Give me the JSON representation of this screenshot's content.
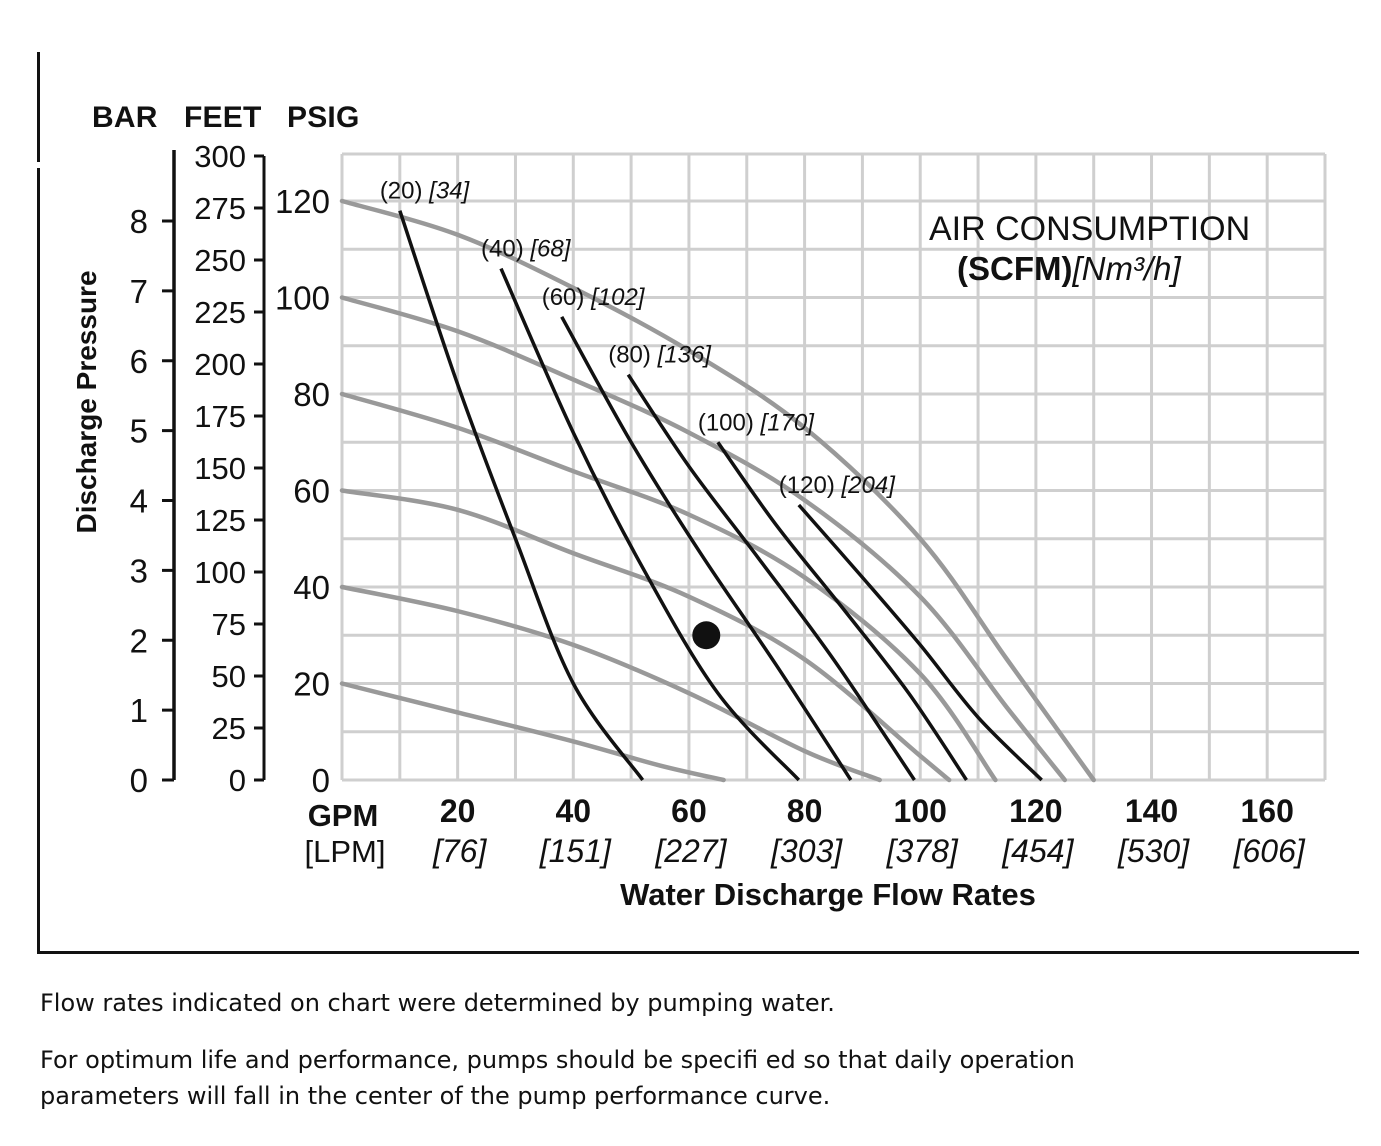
{
  "chart_data": {
    "type": "line",
    "unit_headers": [
      "BAR",
      "FEET",
      "PSIG"
    ],
    "ylabel": "Discharge Pressure",
    "xlabel": "Water Discharge Flow Rates",
    "x_unit_primary": "GPM",
    "x_unit_secondary": "[LPM]",
    "xlim": [
      0,
      170
    ],
    "ylim_psig": [
      0,
      120
    ],
    "x_ticks": [
      {
        "gpm": "20",
        "lpm": "[76]"
      },
      {
        "gpm": "40",
        "lpm": "[151]"
      },
      {
        "gpm": "60",
        "lpm": "[227]"
      },
      {
        "gpm": "80",
        "lpm": "[303]"
      },
      {
        "gpm": "100",
        "lpm": "[378]"
      },
      {
        "gpm": "120",
        "lpm": "[454]"
      },
      {
        "gpm": "140",
        "lpm": "[530]"
      },
      {
        "gpm": "160",
        "lpm": "[606]"
      }
    ],
    "psig_ticks": [
      "0",
      "20",
      "40",
      "60",
      "80",
      "100",
      "120"
    ],
    "feet_ticks": [
      "0",
      "25",
      "50",
      "75",
      "100",
      "125",
      "150",
      "175",
      "200",
      "225",
      "250",
      "275",
      "300"
    ],
    "bar_ticks": [
      "0",
      "1",
      "2",
      "3",
      "4",
      "5",
      "6",
      "7",
      "8"
    ],
    "air_title": "AIR CONSUMPTION",
    "air_unit_bold": "(SCFM)",
    "air_unit_italic": "[Nm³/h]",
    "performance_curves_psig": [
      {
        "inlet_air_psig": 120,
        "points": [
          [
            0,
            120
          ],
          [
            20,
            113
          ],
          [
            40,
            102
          ],
          [
            60,
            89
          ],
          [
            80,
            73
          ],
          [
            100,
            50
          ],
          [
            115,
            25
          ],
          [
            130,
            0
          ]
        ]
      },
      {
        "inlet_air_psig": 100,
        "points": [
          [
            0,
            100
          ],
          [
            20,
            93
          ],
          [
            40,
            83
          ],
          [
            60,
            72
          ],
          [
            80,
            58
          ],
          [
            100,
            38
          ],
          [
            115,
            15
          ],
          [
            125,
            0
          ]
        ]
      },
      {
        "inlet_air_psig": 80,
        "points": [
          [
            0,
            80
          ],
          [
            20,
            73
          ],
          [
            40,
            64
          ],
          [
            60,
            55
          ],
          [
            80,
            42
          ],
          [
            100,
            22
          ],
          [
            113,
            0
          ]
        ]
      },
      {
        "inlet_air_psig": 60,
        "points": [
          [
            0,
            60
          ],
          [
            20,
            56
          ],
          [
            40,
            47
          ],
          [
            60,
            38
          ],
          [
            80,
            25
          ],
          [
            100,
            5
          ],
          [
            105,
            0
          ]
        ]
      },
      {
        "inlet_air_psig": 40,
        "points": [
          [
            0,
            40
          ],
          [
            20,
            35
          ],
          [
            40,
            28
          ],
          [
            60,
            18
          ],
          [
            80,
            6
          ],
          [
            93,
            0
          ]
        ]
      },
      {
        "inlet_air_psig": 20,
        "points": [
          [
            0,
            20
          ],
          [
            20,
            14
          ],
          [
            40,
            8
          ],
          [
            55,
            3
          ],
          [
            66,
            0
          ]
        ]
      }
    ],
    "air_consumption_curves": [
      {
        "label": "(20)",
        "label_metric": "[34]",
        "scfm": 20,
        "points": [
          [
            10,
            118
          ],
          [
            20,
            82
          ],
          [
            30,
            50
          ],
          [
            40,
            20
          ],
          [
            52,
            0
          ]
        ]
      },
      {
        "label": "(40)",
        "label_metric": "[68]",
        "scfm": 40,
        "points": [
          [
            27.5,
            106
          ],
          [
            40,
            72
          ],
          [
            52,
            44
          ],
          [
            65,
            18
          ],
          [
            79,
            0
          ]
        ]
      },
      {
        "label": "(60)",
        "label_metric": "[102]",
        "scfm": 60,
        "points": [
          [
            38,
            96
          ],
          [
            50,
            70
          ],
          [
            62,
            47
          ],
          [
            75,
            24
          ],
          [
            88,
            0
          ]
        ]
      },
      {
        "label": "(80)",
        "label_metric": "[136]",
        "scfm": 80,
        "points": [
          [
            49.5,
            84
          ],
          [
            60,
            65
          ],
          [
            72,
            46
          ],
          [
            85,
            25
          ],
          [
            99,
            0
          ]
        ]
      },
      {
        "label": "(100)",
        "label_metric": "[170]",
        "scfm": 100,
        "points": [
          [
            65,
            70
          ],
          [
            75,
            53
          ],
          [
            87,
            35
          ],
          [
            98,
            18
          ],
          [
            108,
            0
          ]
        ]
      },
      {
        "label": "(120)",
        "label_metric": "[204]",
        "scfm": 120,
        "points": [
          [
            79,
            57
          ],
          [
            90,
            42
          ],
          [
            100,
            28
          ],
          [
            110,
            13
          ],
          [
            121,
            0
          ]
        ]
      }
    ],
    "example_point": {
      "gpm": 63,
      "psig": 30
    },
    "colors": {
      "grid": "#cfcfcf",
      "performance": "#999999",
      "air": "#111111"
    }
  },
  "notes": [
    "Flow rates indicated on chart were determined by pumping water.",
    "For optimum life and performance, pumps should be specifi ed so that daily operation",
    "parameters will fall in the center of the pump performance curve."
  ]
}
